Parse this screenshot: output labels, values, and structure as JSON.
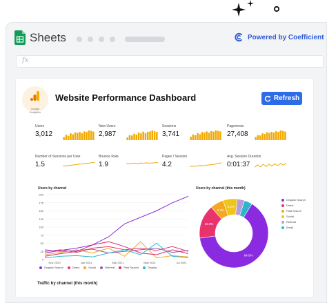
{
  "app": {
    "title": "Sheets",
    "powered_by": "Powered by Coefficient",
    "formula_placeholder": "fx"
  },
  "dashboard": {
    "logo_text": "Google Analytics",
    "title": "Website Performance Dashboard",
    "refresh_label": "Refresh",
    "accent_color": "#2e6be6",
    "spark_color": "#f2a900"
  },
  "metrics": [
    {
      "label": "Users",
      "value": "3,012",
      "kind": "bars",
      "bars": [
        0.3,
        0.55,
        0.45,
        0.7,
        0.6,
        0.8,
        0.75,
        0.85,
        0.7,
        0.9,
        0.85,
        1.0,
        0.95,
        0.88
      ]
    },
    {
      "label": "New Users",
      "value": "2,987",
      "kind": "bars",
      "bars": [
        0.28,
        0.5,
        0.48,
        0.66,
        0.58,
        0.78,
        0.7,
        0.88,
        0.72,
        0.86,
        0.9,
        1.0,
        0.92,
        0.85
      ]
    },
    {
      "label": "Sessions",
      "value": "3,741",
      "kind": "bars",
      "bars": [
        0.35,
        0.58,
        0.5,
        0.72,
        0.62,
        0.84,
        0.78,
        0.9,
        0.76,
        0.94,
        0.88,
        1.0,
        0.96,
        0.9
      ]
    },
    {
      "label": "Pageviews",
      "value": "27,408",
      "kind": "bars",
      "bars": [
        0.32,
        0.52,
        0.48,
        0.7,
        0.64,
        0.82,
        0.74,
        0.86,
        0.78,
        0.92,
        0.86,
        1.0,
        0.94,
        0.88
      ]
    },
    {
      "label": "Number of Sessions per User",
      "value": "1.5",
      "kind": "line",
      "points": [
        0.55,
        0.52,
        0.48,
        0.46,
        0.4,
        0.36,
        0.3,
        0.28,
        0.22,
        0.2,
        0.15,
        0.12
      ]
    },
    {
      "label": "Bounce Rate",
      "value": "1.9",
      "kind": "line",
      "points": [
        0.25,
        0.28,
        0.22,
        0.2,
        0.26,
        0.18,
        0.22,
        0.16,
        0.2,
        0.18,
        0.15,
        0.14
      ]
    },
    {
      "label": "Pages / Session",
      "value": "4.2",
      "kind": "line",
      "points": [
        0.6,
        0.55,
        0.58,
        0.5,
        0.48,
        0.52,
        0.44,
        0.4,
        0.36,
        0.3,
        0.22,
        0.15
      ]
    },
    {
      "label": "Avg. Session Duration",
      "value": "0:01:37",
      "kind": "line",
      "points": [
        0.7,
        0.4,
        0.65,
        0.35,
        0.6,
        0.3,
        0.55,
        0.28,
        0.5,
        0.25,
        0.45,
        0.2
      ]
    }
  ],
  "line_chart": {
    "title": "Users by channel",
    "y_ticks": [
      "200",
      "175",
      "150",
      "125",
      "100",
      "75",
      "50",
      "25",
      "0"
    ],
    "x_ticks": [
      "Nov 2020",
      "Jan 2021",
      "Mar 2021",
      "May 2021",
      "Jul 2021"
    ],
    "legend": [
      {
        "name": "Organic Search",
        "color": "#8a2be2"
      },
      {
        "name": "Direct",
        "color": "#e8336d"
      },
      {
        "name": "Social",
        "color": "#f5a623"
      },
      {
        "name": "Referral",
        "color": "#9b59b6"
      },
      {
        "name": "Paid Search",
        "color": "#d6286b"
      },
      {
        "name": "Display",
        "color": "#2bb6c9"
      }
    ]
  },
  "chart_data": [
    {
      "type": "line",
      "title": "Users by channel",
      "x": [
        "Nov 2020",
        "Dec 2020",
        "Jan 2021",
        "Feb 2021",
        "Mar 2021",
        "Apr 2021",
        "May 2021",
        "Jun 2021",
        "Jul 2021",
        "Aug 2021"
      ],
      "ylim": [
        0,
        200
      ],
      "series": [
        {
          "name": "Organic Search",
          "color": "#8a2be2",
          "values": [
            20,
            28,
            35,
            45,
            70,
            110,
            130,
            150,
            175,
            195
          ]
        },
        {
          "name": "Direct",
          "color": "#e8336d",
          "values": [
            25,
            30,
            22,
            35,
            40,
            30,
            35,
            28,
            40,
            25
          ]
        },
        {
          "name": "Social",
          "color": "#f5a623",
          "values": [
            15,
            22,
            30,
            20,
            35,
            10,
            55,
            5,
            12,
            8
          ]
        },
        {
          "name": "Referral",
          "color": "#9b59b6",
          "values": [
            30,
            25,
            28,
            32,
            20,
            25,
            30,
            35,
            22,
            28
          ]
        },
        {
          "name": "Paid Search",
          "color": "#d6286b",
          "values": [
            10,
            18,
            25,
            45,
            55,
            40,
            20,
            15,
            30,
            18
          ]
        },
        {
          "name": "Display",
          "color": "#2bb6c9",
          "values": [
            5,
            10,
            12,
            8,
            20,
            30,
            15,
            50,
            10,
            6
          ]
        }
      ]
    },
    {
      "type": "pie",
      "title": "Users by channel (this month)",
      "categories": [
        "Organic Search",
        "Direct",
        "Paid Search",
        "Social",
        "Referral",
        "Email"
      ],
      "values": [
        64.0,
        15.9,
        6.3,
        6.6,
        3.5,
        3.7
      ],
      "colors": [
        "#8a2be2",
        "#e8336d",
        "#f5a623",
        "#f0c419",
        "#b39ddb",
        "#2bb6c9"
      ],
      "labels": [
        "64.0%",
        "15.9%",
        "6.3%",
        "6.6%",
        "",
        ""
      ]
    }
  ],
  "traffic_title": "Traffic by channel (this month)"
}
